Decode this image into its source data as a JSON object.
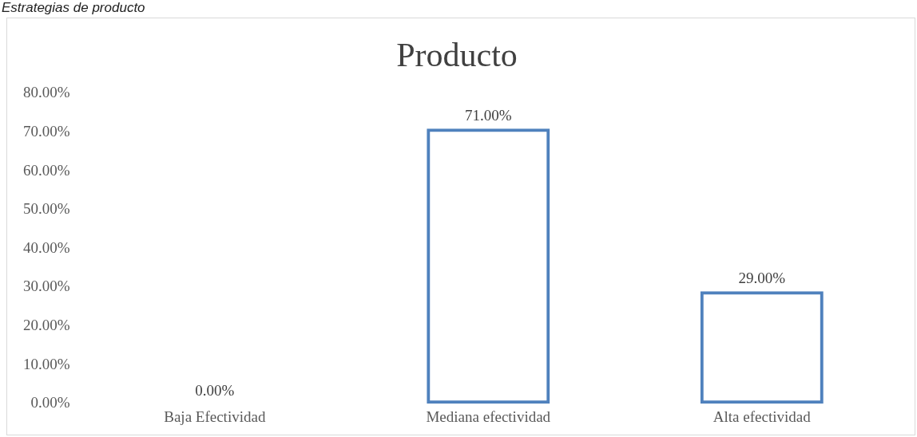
{
  "chart_data": {
    "type": "bar",
    "title": "Producto",
    "annotations": [
      "Estrategias de producto"
    ],
    "categories": [
      "Baja Efectividad",
      "Mediana efectividad",
      "Alta efectividad"
    ],
    "values": [
      0,
      71,
      29
    ],
    "color": "#4f81bd",
    "ylim": [
      0,
      80
    ],
    "yticks": [
      {
        "value": 0,
        "label": "0.00%"
      },
      {
        "value": 10,
        "label": "10.00%"
      },
      {
        "value": 20,
        "label": "20.00%"
      },
      {
        "value": 30,
        "label": "30.00%"
      },
      {
        "value": 40,
        "label": "40.00%"
      },
      {
        "value": 50,
        "label": "50.00%"
      },
      {
        "value": 60,
        "label": "60.00%"
      },
      {
        "value": 70,
        "label": "70.00%"
      },
      {
        "value": 80,
        "label": "80.00%"
      }
    ],
    "value_labels": [
      "0.00%",
      "71.00%",
      "29.00%"
    ],
    "grid": false,
    "legend": false
  }
}
